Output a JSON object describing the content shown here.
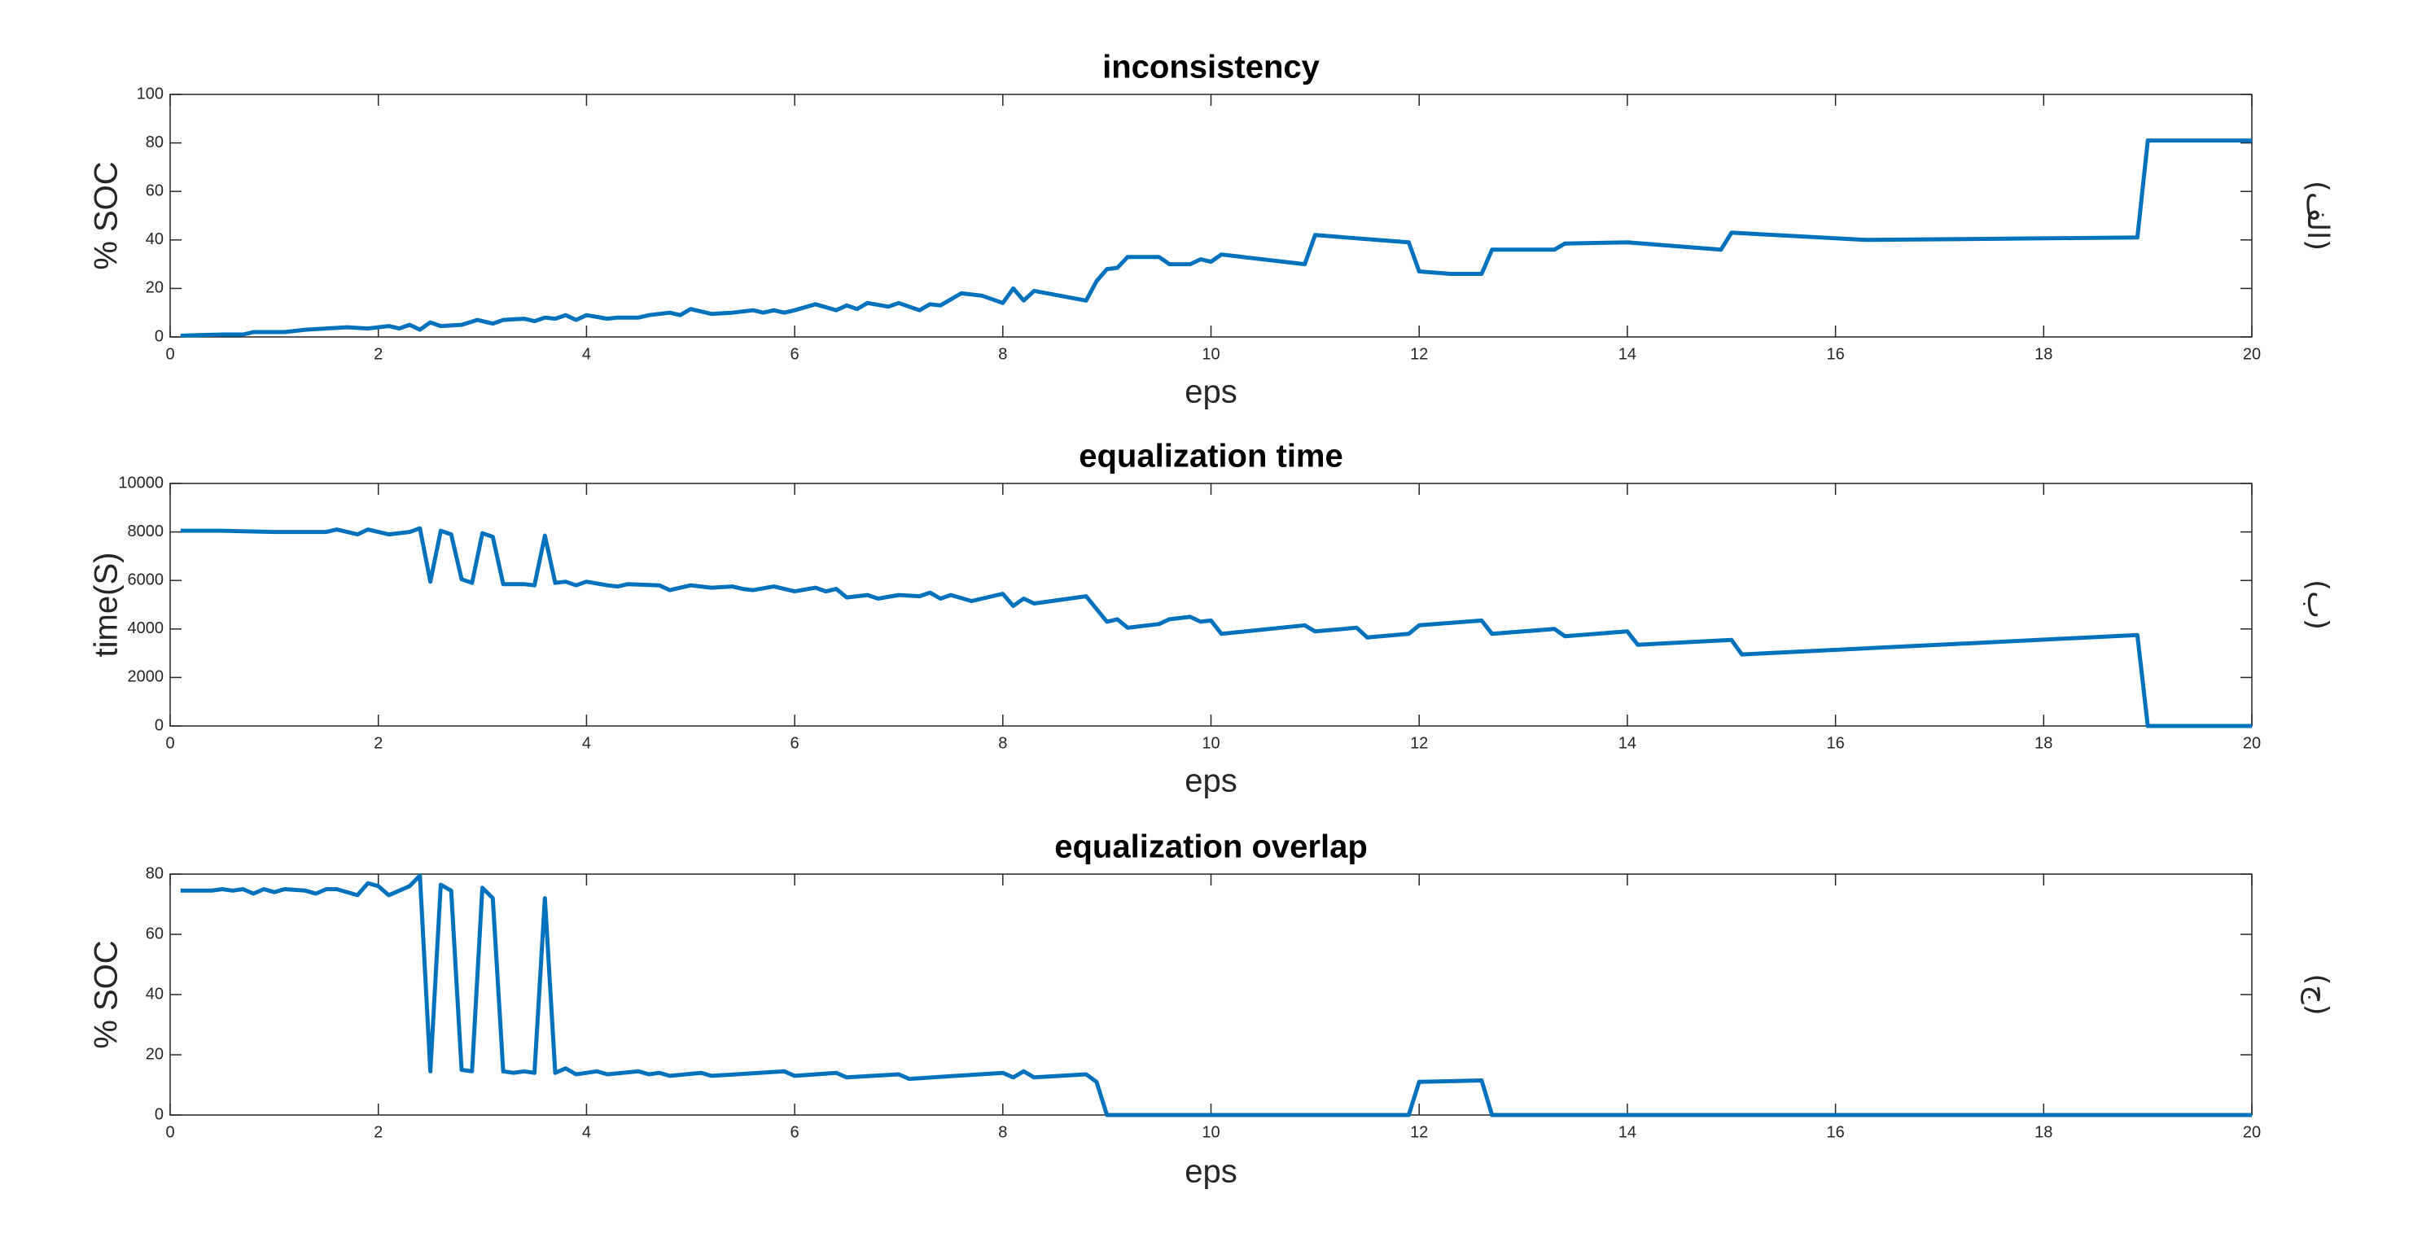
{
  "chart_data": [
    {
      "type": "line",
      "title": "inconsistency",
      "xlabel": "eps",
      "ylabel": "% SOC",
      "annotation": "(الف)",
      "color": "#0072bd",
      "x": [
        0.1,
        0.3,
        0.5,
        0.7,
        0.8,
        1.1,
        1.3,
        1.5,
        1.7,
        1.9,
        2.1,
        2.2,
        2.3,
        2.4,
        2.5,
        2.6,
        2.8,
        2.95,
        3.1,
        3.2,
        3.4,
        3.5,
        3.6,
        3.7,
        3.8,
        3.9,
        4.0,
        4.2,
        4.3,
        4.5,
        4.6,
        4.8,
        4.9,
        5.0,
        5.2,
        5.4,
        5.6,
        5.7,
        5.8,
        5.9,
        6.0,
        6.2,
        6.4,
        6.5,
        6.6,
        6.7,
        6.9,
        7.0,
        7.2,
        7.3,
        7.4,
        7.6,
        7.8,
        8.0,
        8.1,
        8.2,
        8.3,
        8.8,
        8.9,
        9.0,
        9.1,
        9.2,
        9.5,
        9.6,
        9.8,
        9.9,
        10.0,
        10.1,
        10.9,
        11.0,
        11.9,
        12.0,
        12.3,
        12.6,
        12.7,
        13.3,
        13.4,
        14.0,
        14.9,
        15.0,
        16.3,
        18.9,
        19.0,
        20
      ],
      "values": [
        0.5,
        0.8,
        1,
        1,
        2,
        2,
        3,
        3.5,
        4,
        3.5,
        4.5,
        3.5,
        5,
        3,
        6,
        4.5,
        5,
        7,
        5.5,
        7,
        7.5,
        6.5,
        8,
        7.5,
        9,
        7,
        9,
        7.5,
        8,
        8,
        9,
        10,
        9,
        11.5,
        9.5,
        10,
        11,
        10,
        11,
        10,
        11,
        13.5,
        11,
        13,
        11.5,
        14,
        12.5,
        14,
        11,
        13.5,
        13,
        18,
        17,
        14,
        20,
        15,
        19,
        15,
        23,
        28,
        28.5,
        33,
        33,
        30,
        30,
        32,
        31,
        34,
        30,
        42,
        39,
        27,
        26,
        26,
        36,
        36,
        38.5,
        39,
        36,
        43,
        40,
        41,
        81,
        81
      ],
      "xlim": [
        0,
        20
      ],
      "xticks": [
        0,
        2,
        4,
        6,
        8,
        10,
        12,
        14,
        16,
        18,
        20
      ],
      "ylim": [
        0,
        100
      ],
      "yticks": [
        0,
        20,
        40,
        60,
        80,
        100
      ]
    },
    {
      "type": "line",
      "title": "equalization time",
      "xlabel": "eps",
      "ylabel": "time(S)",
      "annotation": "(ب)",
      "color": "#0072bd",
      "x": [
        0.1,
        0.5,
        1.0,
        1.5,
        1.6,
        1.8,
        1.9,
        2.1,
        2.3,
        2.4,
        2.5,
        2.6,
        2.7,
        2.8,
        2.9,
        3.0,
        3.1,
        3.2,
        3.4,
        3.5,
        3.6,
        3.7,
        3.8,
        3.9,
        4.0,
        4.2,
        4.3,
        4.4,
        4.7,
        4.8,
        5.0,
        5.2,
        5.4,
        5.5,
        5.6,
        5.8,
        6.0,
        6.2,
        6.3,
        6.4,
        6.5,
        6.7,
        6.8,
        7.0,
        7.2,
        7.3,
        7.4,
        7.5,
        7.7,
        8.0,
        8.1,
        8.2,
        8.3,
        8.8,
        9.0,
        9.1,
        9.2,
        9.5,
        9.6,
        9.8,
        9.9,
        10.0,
        10.1,
        10.9,
        11.0,
        11.4,
        11.5,
        11.9,
        12.0,
        12.6,
        12.7,
        13.3,
        13.4,
        14.0,
        14.1,
        15.0,
        15.1,
        18.9,
        19.0,
        20
      ],
      "values": [
        8050,
        8050,
        8000,
        8000,
        8100,
        7900,
        8100,
        7900,
        8000,
        8150,
        5950,
        8050,
        7900,
        6050,
        5900,
        7950,
        7800,
        5850,
        5850,
        5800,
        7850,
        5900,
        5950,
        5800,
        5950,
        5800,
        5750,
        5850,
        5800,
        5600,
        5800,
        5700,
        5750,
        5650,
        5600,
        5750,
        5550,
        5700,
        5550,
        5650,
        5300,
        5400,
        5250,
        5400,
        5350,
        5500,
        5250,
        5400,
        5150,
        5450,
        4950,
        5250,
        5050,
        5350,
        4300,
        4400,
        4050,
        4200,
        4400,
        4500,
        4300,
        4350,
        3800,
        4150,
        3900,
        4050,
        3650,
        3800,
        4150,
        4350,
        3800,
        4000,
        3700,
        3900,
        3350,
        3550,
        2950,
        3750,
        0,
        0
      ],
      "xlim": [
        0,
        20
      ],
      "xticks": [
        0,
        2,
        4,
        6,
        8,
        10,
        12,
        14,
        16,
        18,
        20
      ],
      "ylim": [
        0,
        10000
      ],
      "yticks": [
        0,
        2000,
        4000,
        6000,
        8000,
        10000
      ]
    },
    {
      "type": "line",
      "title": "equalization overlap",
      "xlabel": "eps",
      "ylabel": "% SOC",
      "annotation": "(ج)",
      "color": "#0072bd",
      "x": [
        0.1,
        0.4,
        0.5,
        0.6,
        0.7,
        0.8,
        0.9,
        1.0,
        1.1,
        1.3,
        1.4,
        1.5,
        1.6,
        1.8,
        1.9,
        2.0,
        2.1,
        2.3,
        2.4,
        2.5,
        2.6,
        2.7,
        2.8,
        2.9,
        3.0,
        3.1,
        3.2,
        3.3,
        3.4,
        3.5,
        3.6,
        3.7,
        3.8,
        3.9,
        4.0,
        4.1,
        4.2,
        4.5,
        4.6,
        4.7,
        4.8,
        5.1,
        5.2,
        5.9,
        6.0,
        6.4,
        6.5,
        7.0,
        7.1,
        8.0,
        8.1,
        8.2,
        8.3,
        8.8,
        8.9,
        9.0,
        11.9,
        12.0,
        12.6,
        12.7,
        20
      ],
      "values": [
        74.5,
        74.5,
        75,
        74.5,
        75,
        73.5,
        75,
        74,
        75,
        74.5,
        73.5,
        75,
        75,
        73,
        77,
        76,
        73,
        76,
        79.5,
        14.5,
        76.5,
        74.5,
        15,
        14.5,
        75.5,
        72,
        14.5,
        14,
        14.5,
        14,
        72,
        14,
        15.5,
        13.5,
        14,
        14.5,
        13.5,
        14.5,
        13.5,
        14,
        13,
        14,
        13,
        14.5,
        13,
        14,
        12.5,
        13.5,
        12,
        14,
        12.5,
        14.5,
        12.5,
        13.5,
        11,
        0,
        0,
        11,
        11.5,
        0,
        0
      ],
      "xlim": [
        0,
        20
      ],
      "xticks": [
        0,
        2,
        4,
        6,
        8,
        10,
        12,
        14,
        16,
        18,
        20
      ],
      "ylim": [
        0,
        80
      ],
      "yticks": [
        0,
        20,
        40,
        60,
        80
      ]
    }
  ]
}
